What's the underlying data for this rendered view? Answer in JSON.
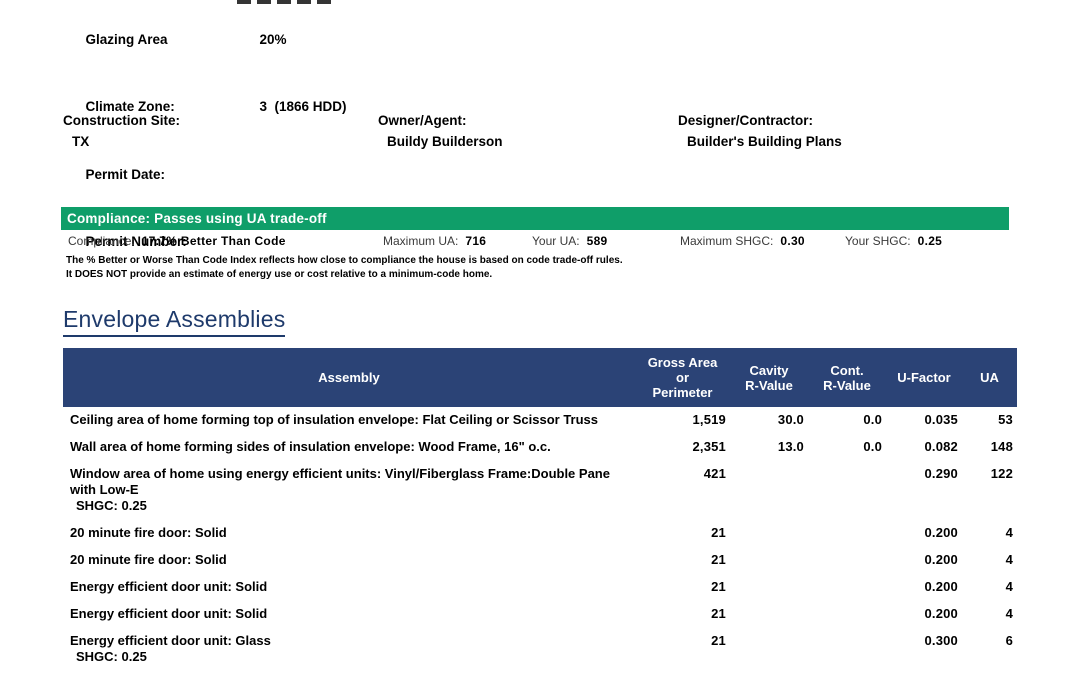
{
  "project": {
    "rows": [
      {
        "label": "Glazing Area",
        "value": "20%"
      },
      {
        "label": "Climate Zone:",
        "value": "3  (1866 HDD)"
      },
      {
        "label": "Permit Date:",
        "value": ""
      },
      {
        "label": "Permit Number:",
        "value": ""
      }
    ]
  },
  "parties": [
    {
      "label": "Construction Site:",
      "value": "TX"
    },
    {
      "label": "Owner/Agent:",
      "value": "Buildy Builderson"
    },
    {
      "label": "Designer/Contractor:",
      "value": "Builder's Building Plans"
    }
  ],
  "compliance": {
    "banner_text": "Compliance: Passes using UA trade-off",
    "banner_color": "#0f9e69",
    "metrics": [
      {
        "label": "Compliance:",
        "value": "17.7% Better Than Code"
      },
      {
        "label": "Maximum UA:",
        "value": "716"
      },
      {
        "label": "Your UA:",
        "value": "589"
      },
      {
        "label": "Maximum SHGC:",
        "value": "0.30"
      },
      {
        "label": "Your SHGC:",
        "value": "0.25"
      }
    ],
    "note_line1": "The % Better or Worse Than Code Index reflects  how close to compliance the house is based on code trade-off rules.",
    "note_line2": "It DOES NOT provide an estimate of energy use or cost relative to a minimum-code home."
  },
  "assemblies": {
    "title": "Envelope Assemblies",
    "header_color": "#2b4376",
    "columns": [
      "Assembly",
      "Gross Area\nor\nPerimeter",
      "Cavity\nR-Value",
      "Cont.\nR-Value",
      "U-Factor",
      "UA"
    ],
    "rows": [
      {
        "assembly": "Ceiling area of home forming top of insulation envelope: Flat Ceiling or Scissor Truss",
        "sub": "",
        "gross": "1,519",
        "cavity": "30.0",
        "cont": "0.0",
        "ufactor": "0.035",
        "ua": "53"
      },
      {
        "assembly": "Wall area of home forming sides of insulation envelope: Wood Frame, 16\" o.c.",
        "sub": "",
        "gross": "2,351",
        "cavity": "13.0",
        "cont": "0.0",
        "ufactor": "0.082",
        "ua": "148"
      },
      {
        "assembly": "Window area of home using energy efficient units: Vinyl/Fiberglass Frame:Double Pane with Low-E",
        "sub": "SHGC: 0.25",
        "gross": "421",
        "cavity": "",
        "cont": "",
        "ufactor": "0.290",
        "ua": "122"
      },
      {
        "assembly": "20 minute fire door: Solid",
        "sub": "",
        "gross": "21",
        "cavity": "",
        "cont": "",
        "ufactor": "0.200",
        "ua": "4"
      },
      {
        "assembly": "20 minute fire door: Solid",
        "sub": "",
        "gross": "21",
        "cavity": "",
        "cont": "",
        "ufactor": "0.200",
        "ua": "4"
      },
      {
        "assembly": "Energy efficient door unit: Solid",
        "sub": "",
        "gross": "21",
        "cavity": "",
        "cont": "",
        "ufactor": "0.200",
        "ua": "4"
      },
      {
        "assembly": "Energy efficient door unit: Solid",
        "sub": "",
        "gross": "21",
        "cavity": "",
        "cont": "",
        "ufactor": "0.200",
        "ua": "4"
      },
      {
        "assembly": "Energy efficient door unit: Glass",
        "sub": "SHGC: 0.25",
        "gross": "21",
        "cavity": "",
        "cont": "",
        "ufactor": "0.300",
        "ua": "6"
      }
    ]
  }
}
